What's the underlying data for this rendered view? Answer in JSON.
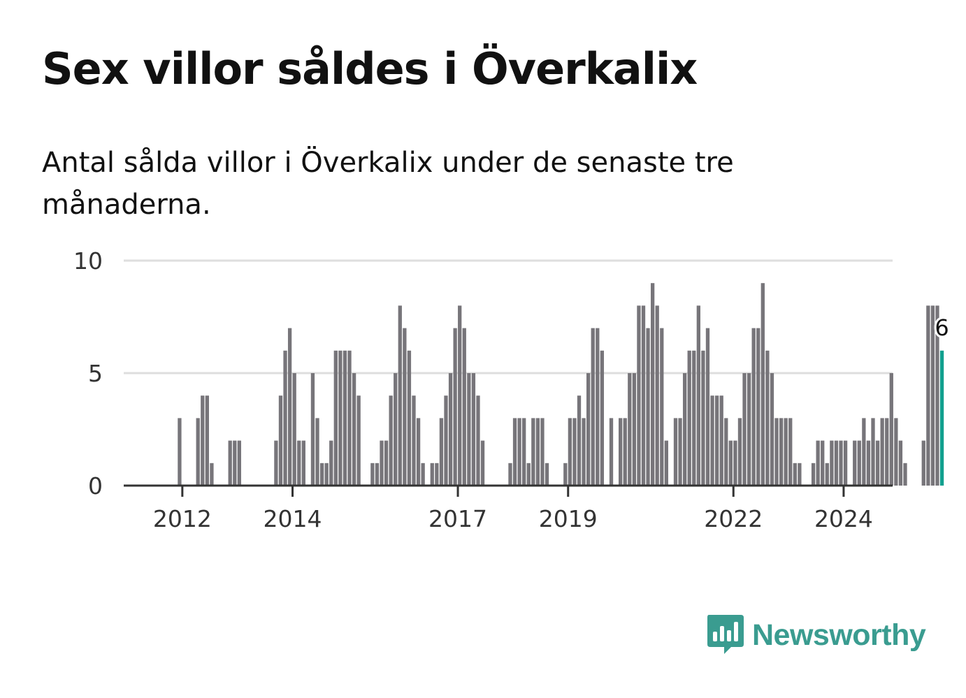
{
  "title": "Sex villor såldes i Överkalix",
  "subtitle": "Antal sålda villor i Överkalix under de senaste tre månaderna.",
  "logo": {
    "text": "Newsworthy",
    "icon": "bar-chart-speech-bubble-icon"
  },
  "colors": {
    "bar": "#77757a",
    "highlight": "#12a08f",
    "logo": "#3a9c90"
  },
  "chart_data": {
    "type": "bar",
    "title": "Sex villor såldes i Överkalix",
    "xlabel": "",
    "ylabel": "",
    "ylim": [
      0,
      10
    ],
    "yticks": [
      0,
      5,
      10
    ],
    "xticks": [
      "2012",
      "2014",
      "2017",
      "2019",
      "2022",
      "2024"
    ],
    "grid": true,
    "highlight_label": "6",
    "start": "2011-08",
    "values": [
      0,
      0,
      0,
      0,
      3,
      0,
      0,
      0,
      3,
      4,
      4,
      1,
      0,
      0,
      0,
      2,
      2,
      2,
      0,
      0,
      0,
      0,
      0,
      0,
      0,
      2,
      4,
      6,
      7,
      5,
      2,
      2,
      0,
      5,
      3,
      1,
      1,
      2,
      6,
      6,
      6,
      6,
      5,
      4,
      0,
      0,
      1,
      1,
      2,
      2,
      4,
      5,
      8,
      7,
      6,
      4,
      3,
      1,
      0,
      1,
      1,
      3,
      4,
      5,
      7,
      8,
      7,
      5,
      5,
      4,
      2,
      0,
      0,
      0,
      0,
      0,
      1,
      3,
      3,
      3,
      1,
      3,
      3,
      3,
      1,
      0,
      0,
      0,
      1,
      3,
      3,
      4,
      3,
      5,
      7,
      7,
      6,
      0,
      3,
      0,
      3,
      3,
      5,
      5,
      8,
      8,
      7,
      9,
      8,
      7,
      2,
      0,
      3,
      3,
      5,
      6,
      6,
      8,
      6,
      7,
      4,
      4,
      4,
      3,
      2,
      2,
      3,
      5,
      5,
      7,
      7,
      9,
      6,
      5,
      3,
      3,
      3,
      3,
      1,
      1,
      0,
      0,
      1,
      2,
      2,
      1,
      2,
      2,
      2,
      2,
      0,
      2,
      2,
      3,
      2,
      3,
      2,
      3,
      3,
      5,
      3,
      2,
      1,
      0,
      0,
      0,
      2,
      8,
      8,
      8,
      6
    ]
  }
}
